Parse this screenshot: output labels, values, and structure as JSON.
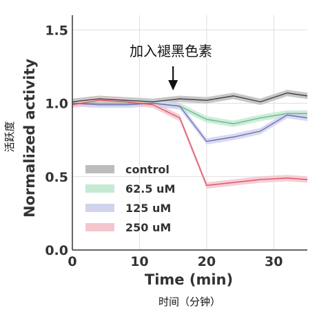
{
  "chart_data": {
    "type": "line",
    "xlabel": "Time (min)",
    "ylabel": "Normalized activity",
    "xlabel_cn": "时间（分钟）",
    "ylabel_cn": "活跃度",
    "annotation": "加入褪黑色素",
    "annotation_x": 15,
    "xlim": [
      0,
      35
    ],
    "ylim": [
      0.0,
      1.6
    ],
    "xticks": [
      "0",
      "10",
      "20",
      "30"
    ],
    "yticks": [
      "0.0",
      "0.5",
      "1.0",
      "1.5"
    ],
    "grid": true,
    "legend_position": "lower-left",
    "series": [
      {
        "name": "control",
        "color": "#444444",
        "band_color": "#bdbdbd",
        "points": [
          [
            0,
            1.01
          ],
          [
            4,
            1.03
          ],
          [
            8,
            1.02
          ],
          [
            12,
            1.01
          ],
          [
            16,
            1.03
          ],
          [
            20,
            1.02
          ],
          [
            24,
            1.05
          ],
          [
            28,
            1.01
          ],
          [
            32,
            1.07
          ],
          [
            35,
            1.05
          ]
        ]
      },
      {
        "name": "62.5 uM",
        "color": "#66bb88",
        "band_color": "#c6e9d3",
        "points": [
          [
            0,
            1.0
          ],
          [
            4,
            1.0
          ],
          [
            8,
            1.0
          ],
          [
            12,
            1.0
          ],
          [
            16,
            0.98
          ],
          [
            20,
            0.89
          ],
          [
            24,
            0.86
          ],
          [
            28,
            0.9
          ],
          [
            32,
            0.93
          ],
          [
            35,
            0.93
          ]
        ]
      },
      {
        "name": "125 uM",
        "color": "#6a6fb8",
        "band_color": "#d2d3ec",
        "points": [
          [
            0,
            1.0
          ],
          [
            4,
            0.99
          ],
          [
            8,
            0.99
          ],
          [
            12,
            1.0
          ],
          [
            16,
            0.98
          ],
          [
            20,
            0.74
          ],
          [
            24,
            0.77
          ],
          [
            28,
            0.81
          ],
          [
            32,
            0.92
          ],
          [
            35,
            0.9
          ]
        ]
      },
      {
        "name": "250 uM",
        "color": "#d9566b",
        "band_color": "#f5c6ce",
        "points": [
          [
            0,
            0.99
          ],
          [
            4,
            1.02
          ],
          [
            8,
            1.01
          ],
          [
            12,
            0.99
          ],
          [
            16,
            0.9
          ],
          [
            20,
            0.44
          ],
          [
            24,
            0.46
          ],
          [
            28,
            0.48
          ],
          [
            32,
            0.49
          ],
          [
            35,
            0.48
          ]
        ]
      }
    ]
  }
}
